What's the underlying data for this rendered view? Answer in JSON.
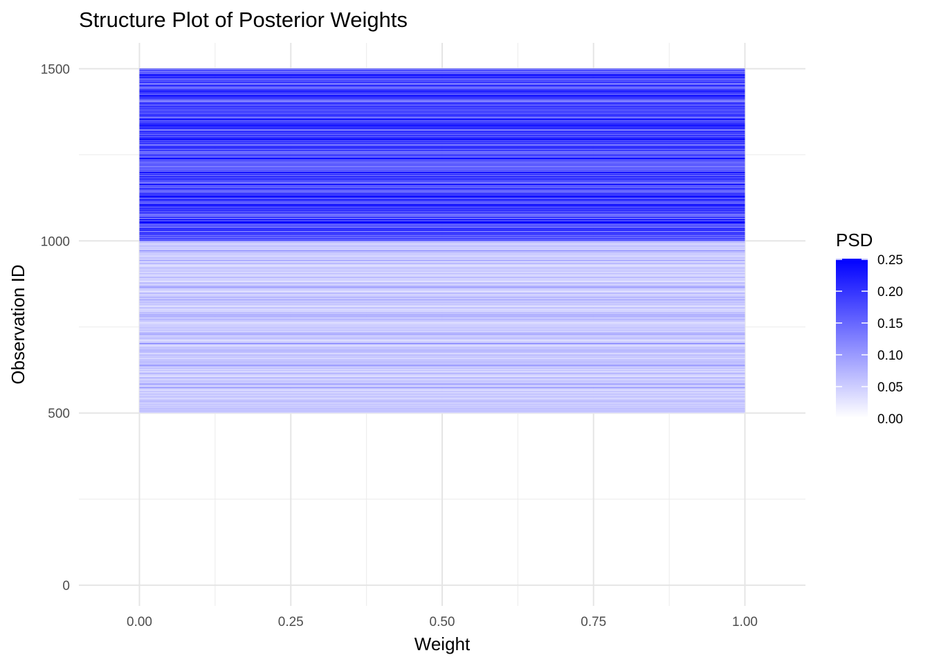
{
  "chart_data": {
    "type": "bar",
    "orientation": "horizontal",
    "stacked": true,
    "title": "Structure Plot of Posterior Weights",
    "xlabel": "Weight",
    "ylabel": "Observation ID",
    "xlim": [
      -0.1,
      1.1
    ],
    "ylim": [
      -60,
      1575
    ],
    "x_ticks": [
      0.0,
      0.25,
      0.5,
      0.75,
      1.0
    ],
    "x_tick_labels": [
      "0.00",
      "0.25",
      "0.50",
      "0.75",
      "1.00"
    ],
    "y_ticks": [
      0,
      500,
      1000,
      1500
    ],
    "y_tick_labels": [
      "0",
      "500",
      "1000",
      "1500"
    ],
    "grid": true,
    "n_observations": 1500,
    "fill_legend": {
      "title": "PSD",
      "placement": "right",
      "low_color": "#ffffff",
      "high_color": "#0000ff",
      "range": [
        0,
        0.25
      ],
      "ticks": [
        0.0,
        0.05,
        0.1,
        0.15,
        0.2,
        0.25
      ],
      "tick_labels": [
        "0.00",
        "0.05",
        "0.10",
        "0.15",
        "0.20",
        "0.25"
      ]
    },
    "groups": [
      {
        "id_range": [
          1,
          500
        ],
        "psd_typical": 0.0
      },
      {
        "id_range": [
          501,
          1000
        ],
        "psd_typical": 0.05
      },
      {
        "id_range": [
          1001,
          1500
        ],
        "psd_typical": 0.18
      }
    ]
  }
}
